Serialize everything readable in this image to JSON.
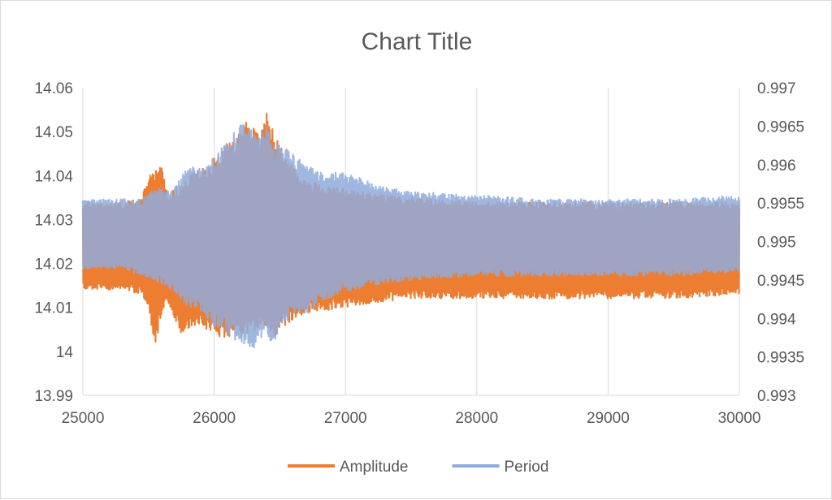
{
  "chart_data": {
    "type": "line",
    "title": "Chart Title",
    "xlabel": "",
    "ylabel": "",
    "xlim": [
      25000,
      30000
    ],
    "ylim": [
      13.99,
      14.06
    ],
    "y2lim": [
      0.993,
      0.997
    ],
    "x_ticks": [
      25000,
      26000,
      27000,
      28000,
      29000,
      30000
    ],
    "x_tick_labels": [
      "25000",
      "26000",
      "27000",
      "28000",
      "29000",
      "30000"
    ],
    "y_ticks": [
      13.99,
      14,
      14.01,
      14.02,
      14.03,
      14.04,
      14.05,
      14.06
    ],
    "y_tick_labels": [
      "13.99",
      "14",
      "14.01",
      "14.02",
      "14.03",
      "14.04",
      "14.05",
      "14.06"
    ],
    "y2_ticks": [
      0.993,
      0.9935,
      0.994,
      0.9945,
      0.995,
      0.9955,
      0.996,
      0.9965,
      0.997
    ],
    "y2_tick_labels": [
      "0.993",
      "0.9935",
      "0.994",
      "0.9945",
      "0.995",
      "0.9955",
      "0.996",
      "0.9965",
      "0.997"
    ],
    "grid": "vertical",
    "legend": "bottom",
    "series": [
      {
        "name": "Amplitude",
        "axis": "left",
        "color": "#ED7D31",
        "envelope": {
          "x": [
            25000,
            25300,
            25450,
            25500,
            25550,
            25600,
            25650,
            25750,
            25850,
            25950,
            26050,
            26150,
            26250,
            26350,
            26400,
            26450,
            26550,
            26650,
            26800,
            27000,
            27200,
            27500,
            28000,
            28500,
            29000,
            29500,
            30000
          ],
          "high": [
            14.034,
            14.034,
            14.035,
            14.04,
            14.042,
            14.042,
            14.036,
            14.038,
            14.041,
            14.042,
            14.046,
            14.048,
            14.053,
            14.049,
            14.055,
            14.05,
            14.044,
            14.04,
            14.038,
            14.037,
            14.036,
            14.035,
            14.034,
            14.034,
            14.034,
            14.034,
            14.034
          ],
          "low": [
            14.014,
            14.014,
            14.013,
            14.01,
            14.0,
            14.009,
            14.011,
            14.004,
            14.006,
            14.005,
            14.003,
            14.002,
            14.004,
            14.005,
            14.004,
            14.003,
            14.006,
            14.008,
            14.009,
            14.01,
            14.011,
            14.012,
            14.012,
            14.012,
            14.012,
            14.012,
            14.013
          ]
        }
      },
      {
        "name": "Period",
        "axis": "right",
        "color": "#8FAADC",
        "envelope": {
          "x": [
            25000,
            25300,
            25450,
            25500,
            25600,
            25700,
            25800,
            25900,
            26000,
            26100,
            26200,
            26300,
            26400,
            26450,
            26500,
            26600,
            26700,
            26800,
            27000,
            27300,
            27500,
            28000,
            28500,
            29000,
            29500,
            30000
          ],
          "high": [
            0.99555,
            0.99555,
            0.99555,
            0.99565,
            0.9957,
            0.9957,
            0.996,
            0.99595,
            0.9961,
            0.9963,
            0.99655,
            0.99645,
            0.9965,
            0.9963,
            0.99625,
            0.99615,
            0.996,
            0.9959,
            0.9959,
            0.9957,
            0.99565,
            0.9956,
            0.99555,
            0.99555,
            0.99555,
            0.9956
          ],
          "low": [
            0.99465,
            0.99465,
            0.99455,
            0.9945,
            0.99445,
            0.99435,
            0.99415,
            0.9941,
            0.9939,
            0.9938,
            0.99365,
            0.99355,
            0.99385,
            0.99355,
            0.9939,
            0.994,
            0.99405,
            0.9942,
            0.99435,
            0.99445,
            0.9945,
            0.99455,
            0.99455,
            0.99455,
            0.99455,
            0.9946
          ]
        }
      }
    ]
  }
}
